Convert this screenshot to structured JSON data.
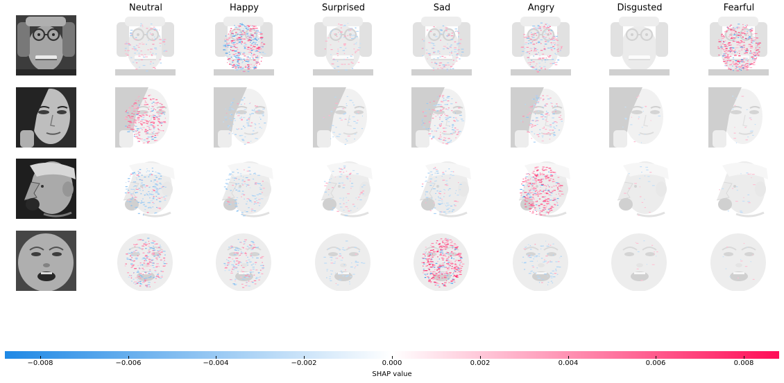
{
  "chart_data": {
    "type": "heatmap",
    "description_kind": "SHAP image explanation grid",
    "columns": [
      "Neutral",
      "Happy",
      "Surprised",
      "Sad",
      "Angry",
      "Disgusted",
      "Fearful"
    ],
    "input_images": [
      {
        "subject": "older person with glasses, hands on head"
      },
      {
        "subject": "young woman looking sideways"
      },
      {
        "subject": "elderly man shouting, profile view"
      },
      {
        "subject": "crying baby"
      }
    ],
    "attribution_intensity": [
      [
        0.25,
        0.85,
        0.2,
        0.3,
        0.45,
        0.0,
        0.8
      ],
      [
        0.6,
        0.25,
        0.12,
        0.35,
        0.3,
        0.05,
        0.05
      ],
      [
        0.45,
        0.3,
        0.18,
        0.25,
        0.75,
        0.05,
        0.05
      ],
      [
        0.55,
        0.4,
        0.15,
        0.85,
        0.2,
        0.03,
        0.03
      ]
    ],
    "dominant_sign": [
      [
        "mixed",
        "mixed",
        "mixed",
        "mixed",
        "mixed",
        "none",
        "positive"
      ],
      [
        "positive",
        "negative",
        "negative",
        "mixed",
        "mixed",
        "none",
        "none"
      ],
      [
        "negative",
        "negative",
        "mixed",
        "negative",
        "positive",
        "none",
        "none"
      ],
      [
        "mixed",
        "mixed",
        "negative",
        "positive",
        "negative",
        "none",
        "none"
      ]
    ],
    "colorbar": {
      "label": "SHAP value",
      "range": [
        -0.0088,
        0.0088
      ],
      "ticks": [
        -0.008,
        -0.006,
        -0.004,
        -0.002,
        0.0,
        0.002,
        0.004,
        0.006,
        0.008
      ],
      "tick_labels": [
        "−0.008",
        "−0.006",
        "−0.004",
        "−0.002",
        "0.000",
        "0.002",
        "0.004",
        "0.006",
        "0.008"
      ],
      "negative_color": "#1e88e5",
      "positive_color": "#ff0d57",
      "mid_color": "#ffffff"
    }
  }
}
